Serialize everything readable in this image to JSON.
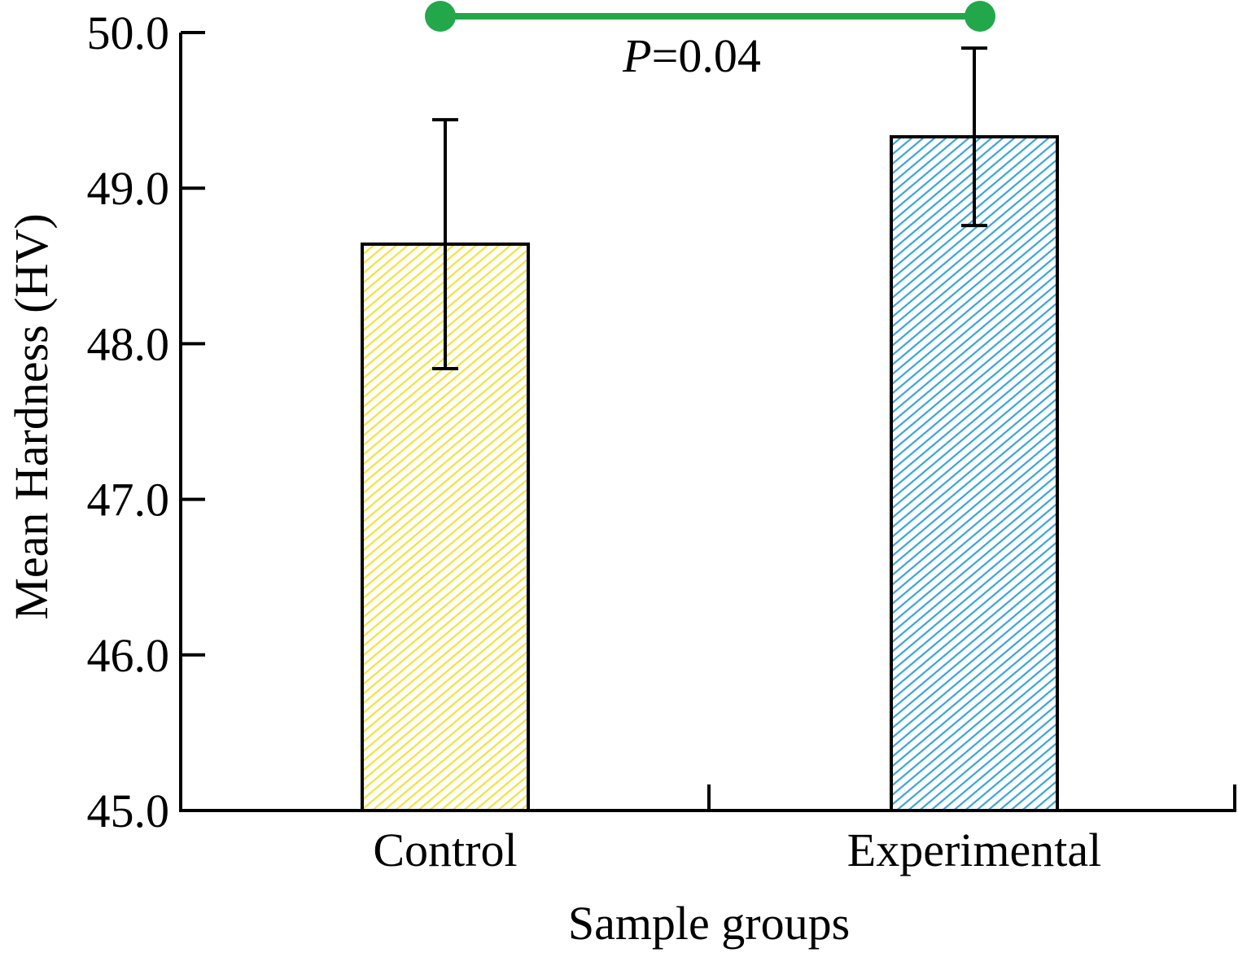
{
  "chart_data": {
    "type": "bar",
    "categories": [
      "Control",
      "Experimental"
    ],
    "values": [
      48.64,
      49.33
    ],
    "error": [
      0.8,
      0.57
    ],
    "xlabel": "Sample groups",
    "ylabel": "Mean Hardness (HV)",
    "ylim": [
      45.0,
      50.0
    ],
    "yticks": [
      "45.0",
      "46.0",
      "47.0",
      "48.0",
      "49.0",
      "50.0"
    ],
    "grid": false,
    "bar_colors": [
      "#f2e33a",
      "#3aa3dc"
    ],
    "bar_fill": "diagonal hatch",
    "significance": {
      "p_symbol": "P",
      "p_relation": "=",
      "p_value": "0.04",
      "color": "#22a84a"
    }
  }
}
